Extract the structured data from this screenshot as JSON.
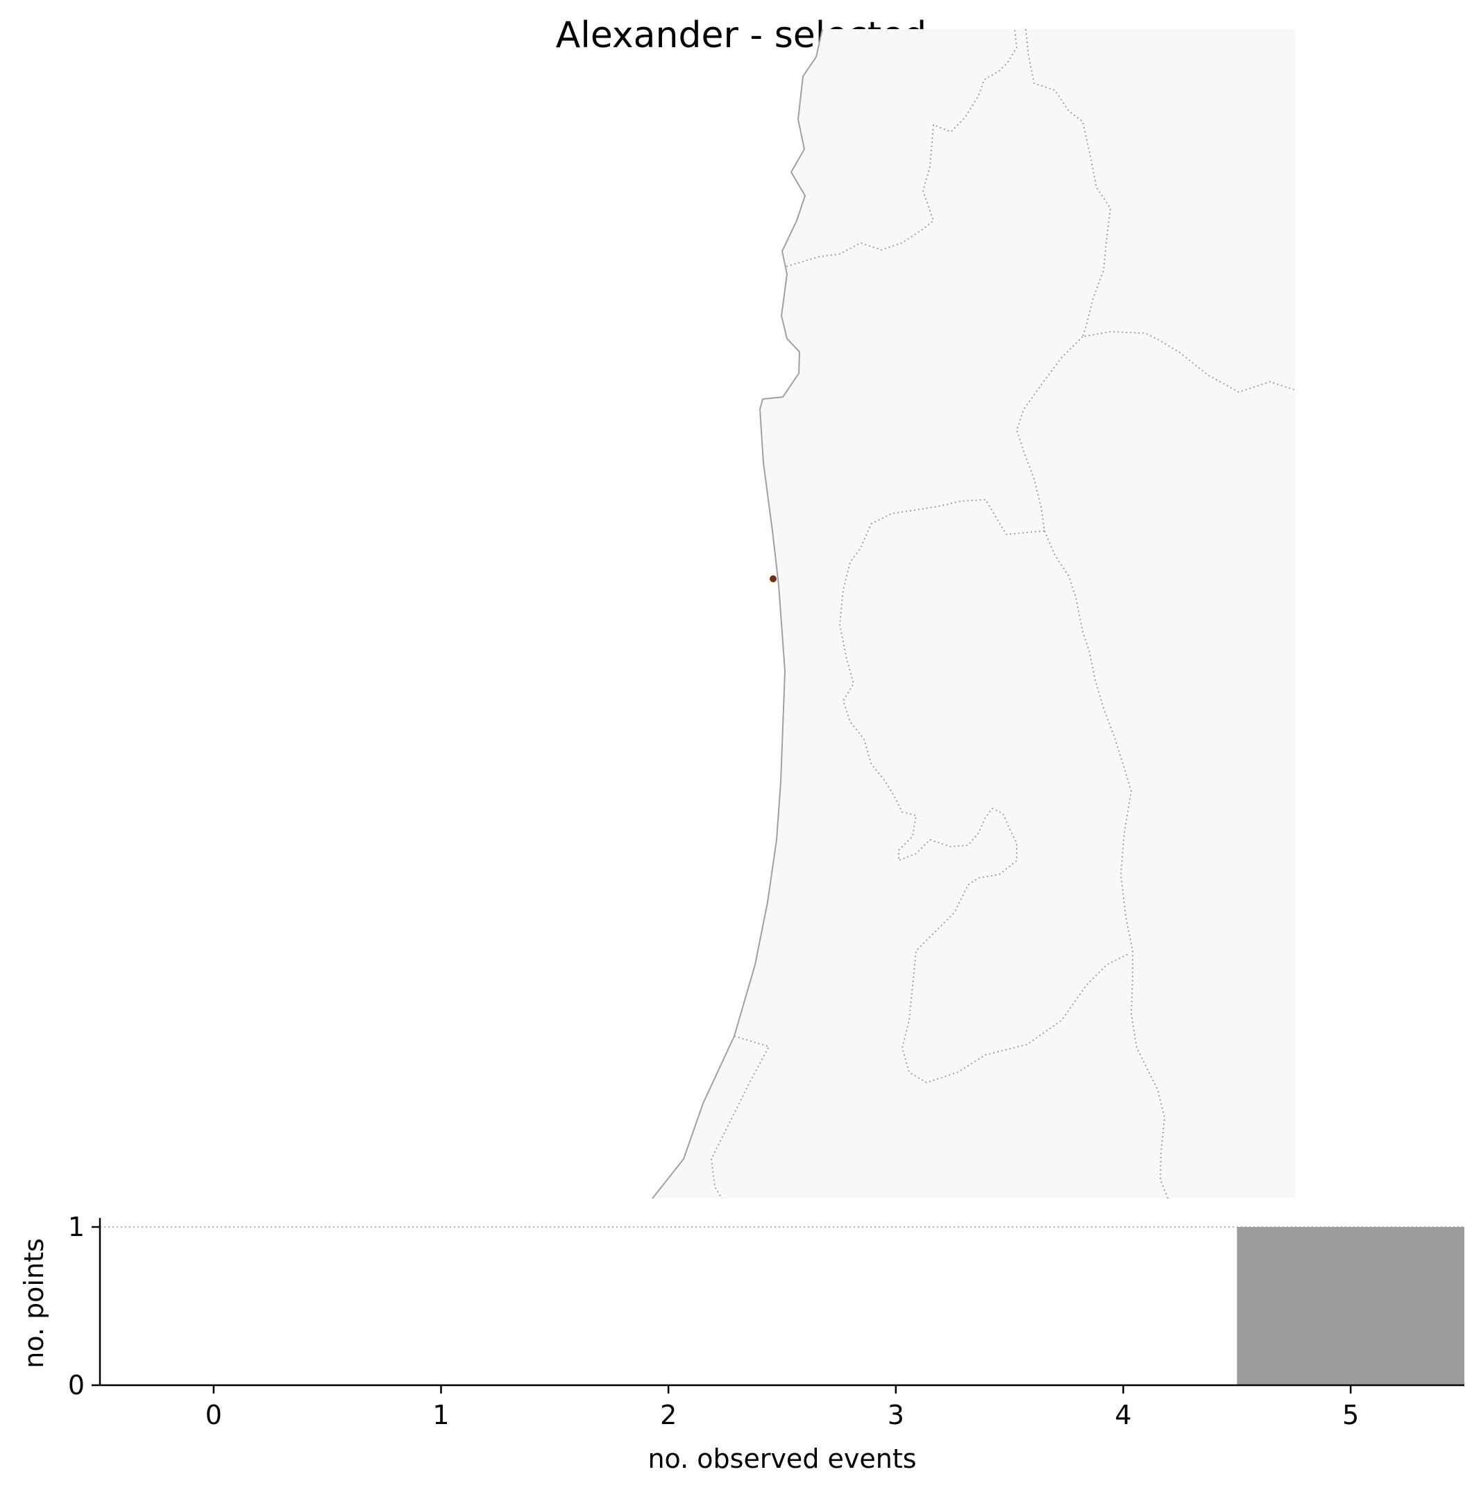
{
  "title": "Alexander - selected",
  "map": {
    "region": "Israel coastal plain",
    "land_color": "#f8f8f8",
    "coast_color": "#a0a0a0",
    "point_color": "#7a2a10",
    "point_count": 1
  },
  "chart_data": {
    "type": "bar",
    "categories": [
      "0",
      "1",
      "2",
      "3",
      "4",
      "5"
    ],
    "values": [
      0,
      0,
      0,
      0,
      0,
      1
    ],
    "xlabel": "no. observed events",
    "ylabel": "no. points",
    "xticks": [
      "0",
      "1",
      "2",
      "3",
      "4",
      "5"
    ],
    "yticks": [
      "0",
      "1"
    ],
    "xlim": [
      -0.5,
      5.5
    ],
    "ylim": [
      0,
      1
    ],
    "bar_color": "#9c9c9c",
    "reference_line": 1
  }
}
